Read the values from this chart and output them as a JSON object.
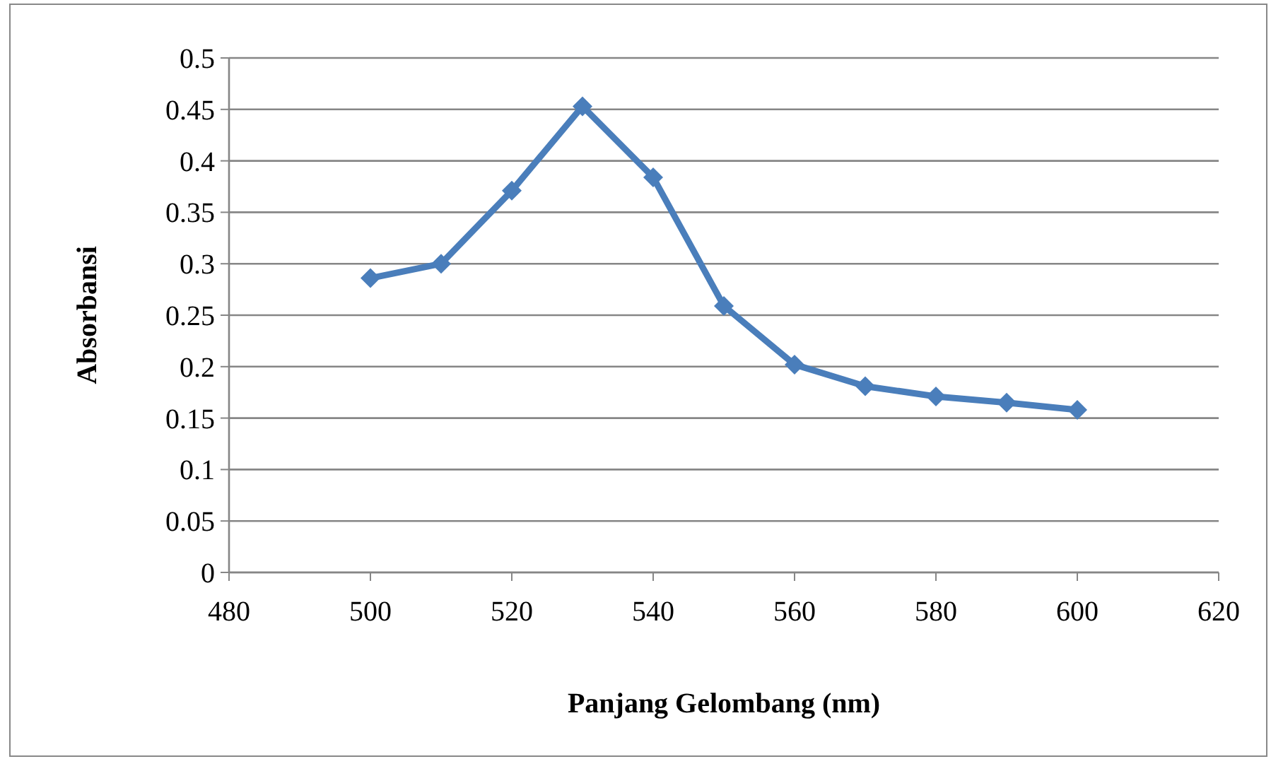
{
  "chart_data": {
    "type": "line",
    "xlabel": "Panjang Gelombang (nm)",
    "ylabel": "Absorbansi",
    "x": [
      500,
      510,
      520,
      530,
      540,
      550,
      560,
      570,
      580,
      590,
      600
    ],
    "series": [
      {
        "color": "#4a7ebb",
        "values": [
          0.286,
          0.3,
          0.371,
          0.453,
          0.384,
          0.259,
          0.202,
          0.181,
          0.171,
          0.165,
          0.158
        ]
      }
    ],
    "xlim": [
      480,
      620
    ],
    "xticks": [
      480,
      500,
      520,
      540,
      560,
      580,
      600,
      620
    ],
    "ylim": [
      0,
      0.5
    ],
    "yticks": [
      {
        "value": 0,
        "label": "0"
      },
      0.05,
      0.1,
      0.15,
      0.2,
      0.25,
      0.3,
      0.35,
      0.4,
      0.45,
      0.5
    ],
    "grid": "y",
    "marker": "diamond",
    "line_style": "solid"
  }
}
